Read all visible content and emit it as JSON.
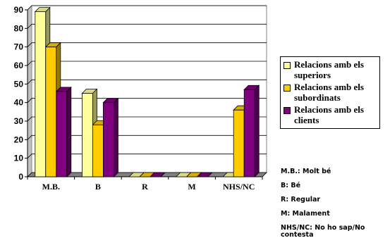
{
  "chart_data": {
    "type": "bar",
    "categories": [
      "M.B.",
      "B",
      "R",
      "M",
      "NHS/NC"
    ],
    "series": [
      {
        "name": "Relacions amb els superiors",
        "values": [
          89,
          45,
          0,
          0,
          0
        ],
        "color": "#ffff99"
      },
      {
        "name": "Relacions amb els subordinats",
        "values": [
          70,
          28,
          0,
          0,
          36
        ],
        "color": "#ffcc00"
      },
      {
        "name": "Relacions amb els clients",
        "values": [
          46,
          40,
          0,
          0,
          47
        ],
        "color": "#800080"
      }
    ],
    "ylim": [
      0,
      90
    ],
    "yticks": [
      0,
      10,
      20,
      30,
      40,
      50,
      60,
      70,
      80,
      90
    ],
    "grid": true,
    "legend_position": "right",
    "bar_style": "3d"
  },
  "notes": [
    "M.B.: Molt bé",
    "B: Bé",
    "R: Regular",
    "M: Malament",
    "NHS/NC: No ho sap/No contesta"
  ]
}
